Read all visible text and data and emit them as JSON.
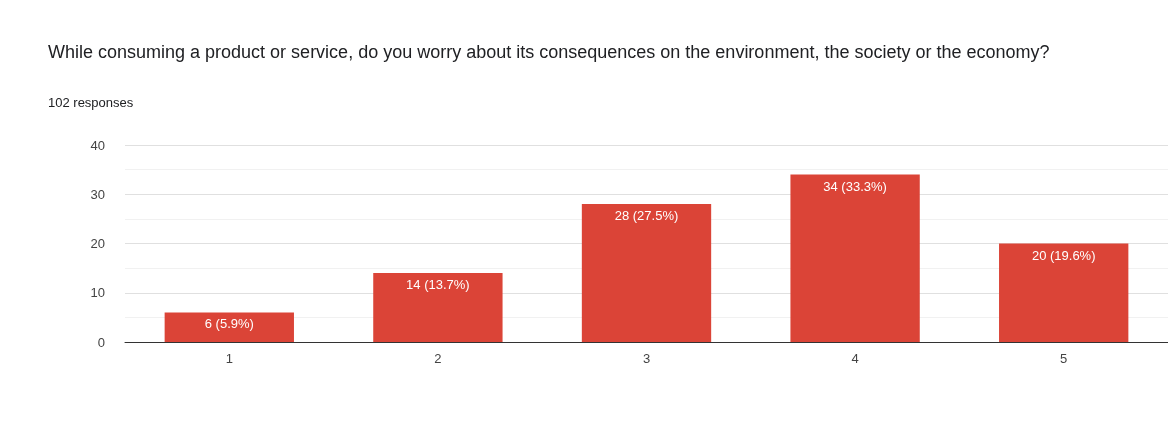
{
  "chart_data": {
    "type": "bar",
    "title": "While consuming a product or service, do you worry about its consequences on the environment, the society or the economy?",
    "subtitle": "102 responses",
    "categories": [
      "1",
      "2",
      "3",
      "4",
      "5"
    ],
    "values": [
      6,
      14,
      28,
      34,
      20
    ],
    "value_labels": [
      "6 (5.9%)",
      "14 (13.7%)",
      "28 (27.5%)",
      "34 (33.3%)",
      "20 (19.6%)"
    ],
    "color": "#db4437",
    "ylim": [
      0,
      40
    ],
    "yticks": [
      0,
      10,
      20,
      30,
      40
    ],
    "grid": "y"
  }
}
